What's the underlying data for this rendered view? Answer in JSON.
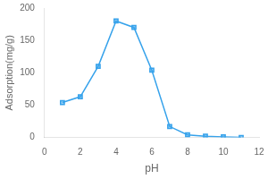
{
  "chart_data": {
    "type": "line",
    "x": [
      1,
      2,
      3,
      4,
      5,
      6,
      7,
      8,
      9,
      10,
      11
    ],
    "values": [
      54,
      63,
      110,
      180,
      170,
      104,
      17,
      4,
      2,
      1,
      0
    ],
    "xlabel": "pH",
    "ylabel": "Adsorption(mg/g)",
    "xlim": [
      0,
      12
    ],
    "ylim": [
      0,
      200
    ],
    "xticks": [
      0,
      2,
      4,
      6,
      8,
      10,
      12
    ],
    "yticks": [
      0,
      50,
      100,
      150,
      200
    ],
    "grid": false,
    "marker": "square"
  }
}
